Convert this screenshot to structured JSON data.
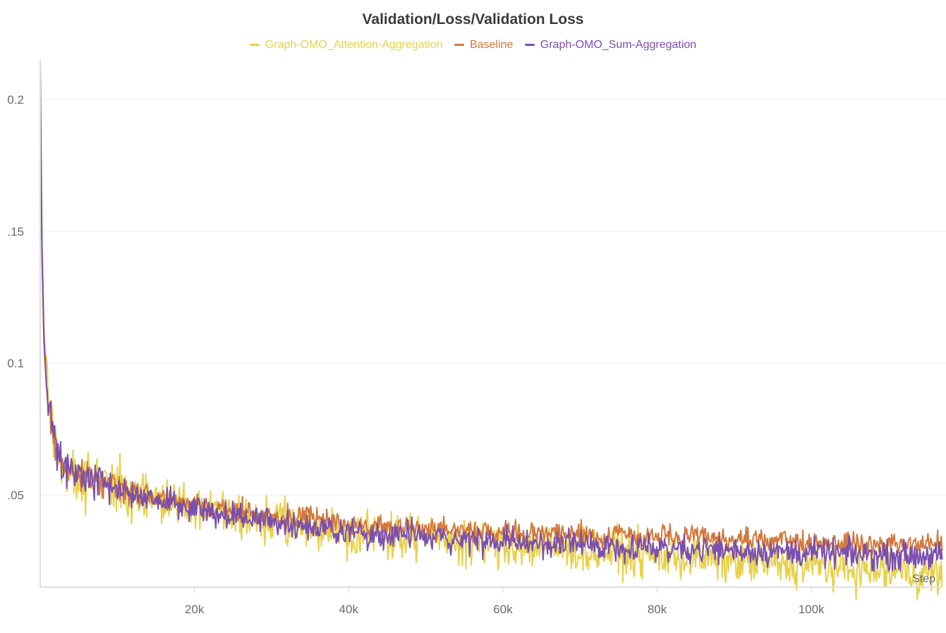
{
  "chart_data": {
    "type": "line",
    "title": "Validation/Loss/Validation Loss",
    "xlabel": "Step",
    "ylabel": "",
    "xlim": [
      0,
      117000
    ],
    "ylim": [
      0.015,
      0.215
    ],
    "x_ticks": [
      20000,
      40000,
      60000,
      80000,
      100000
    ],
    "x_tick_labels": [
      "20k",
      "40k",
      "60k",
      "80k",
      "100k"
    ],
    "y_ticks": [
      0.05,
      0.1,
      0.15,
      0.2
    ],
    "y_tick_labels": [
      ".05",
      "0.1",
      ".15",
      "0.2"
    ],
    "grid": true,
    "legend_position": "top-center",
    "series": [
      {
        "name": "Graph-OMO_Attention-Aggregation",
        "color": "#e8d14a",
        "x": [
          0,
          200,
          500,
          1000,
          2000,
          3000,
          5000,
          8000,
          10000,
          15000,
          20000,
          25000,
          30000,
          35000,
          40000,
          50000,
          60000,
          70000,
          80000,
          90000,
          100000,
          110000,
          117000
        ],
        "values": [
          0.215,
          0.15,
          0.11,
          0.09,
          0.068,
          0.062,
          0.058,
          0.055,
          0.052,
          0.048,
          0.045,
          0.042,
          0.04,
          0.038,
          0.036,
          0.034,
          0.031,
          0.029,
          0.027,
          0.025,
          0.023,
          0.021,
          0.02
        ]
      },
      {
        "name": "Baseline",
        "color": "#d3783c",
        "x": [
          0,
          200,
          500,
          1000,
          2000,
          3000,
          5000,
          8000,
          10000,
          15000,
          20000,
          25000,
          30000,
          35000,
          40000,
          50000,
          60000,
          70000,
          80000,
          90000,
          100000,
          110000,
          117000
        ],
        "values": [
          0.205,
          0.145,
          0.105,
          0.085,
          0.066,
          0.061,
          0.058,
          0.055,
          0.053,
          0.049,
          0.046,
          0.044,
          0.042,
          0.041,
          0.039,
          0.037,
          0.036,
          0.035,
          0.034,
          0.033,
          0.032,
          0.031,
          0.031
        ]
      },
      {
        "name": "Graph-OMO_Sum-Aggregation",
        "color": "#7a4fb0",
        "x": [
          0,
          200,
          500,
          1000,
          2000,
          3000,
          5000,
          8000,
          10000,
          15000,
          20000,
          25000,
          30000,
          35000,
          40000,
          50000,
          60000,
          70000,
          80000,
          90000,
          100000,
          110000,
          117000
        ],
        "values": [
          0.215,
          0.148,
          0.108,
          0.086,
          0.067,
          0.061,
          0.057,
          0.054,
          0.052,
          0.048,
          0.045,
          0.042,
          0.04,
          0.038,
          0.036,
          0.034,
          0.032,
          0.031,
          0.03,
          0.029,
          0.028,
          0.027,
          0.027
        ]
      }
    ]
  }
}
